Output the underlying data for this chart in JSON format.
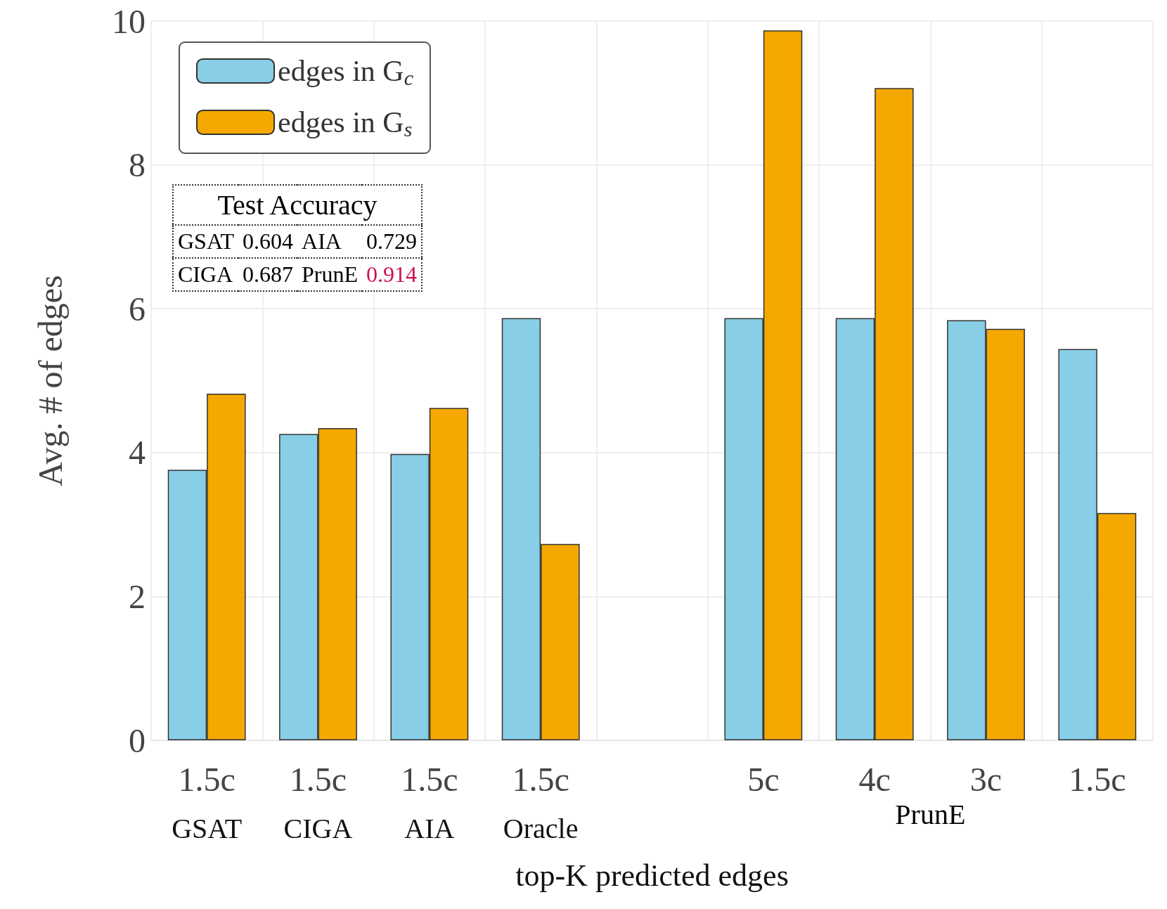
{
  "chart_data": {
    "type": "bar",
    "xlabel": "top-K predicted edges",
    "ylabel": "Avg. # of edges",
    "categories": [
      "1.5c\nGSAT",
      "1.5c\nCIGA",
      "1.5c\nAIA",
      "1.5c\nOracle",
      null,
      "5c",
      "4c",
      "3c",
      "1.5c"
    ],
    "series": [
      {
        "name": "edges in G$_{c}$",
        "color": "#87cee6",
        "values": [
          3.76,
          4.26,
          3.98,
          5.87,
          null,
          5.87,
          5.87,
          5.84,
          5.44
        ]
      },
      {
        "name": "edges in G$_{s}$",
        "color": "#f5a800",
        "values": [
          4.82,
          4.34,
          4.62,
          2.73,
          null,
          9.87,
          9.07,
          5.72,
          3.16
        ]
      }
    ],
    "ylim": [
      0,
      10
    ],
    "yticks": [
      0,
      2,
      4,
      6,
      8,
      10
    ],
    "grid": true,
    "legend": "top left",
    "annotations": [
      "Test Accuracy",
      "GSAT",
      "0.604",
      "AIA",
      "0.729",
      "CIGA",
      "0.687",
      "PrunE",
      "0.914",
      "PrunE"
    ]
  }
}
